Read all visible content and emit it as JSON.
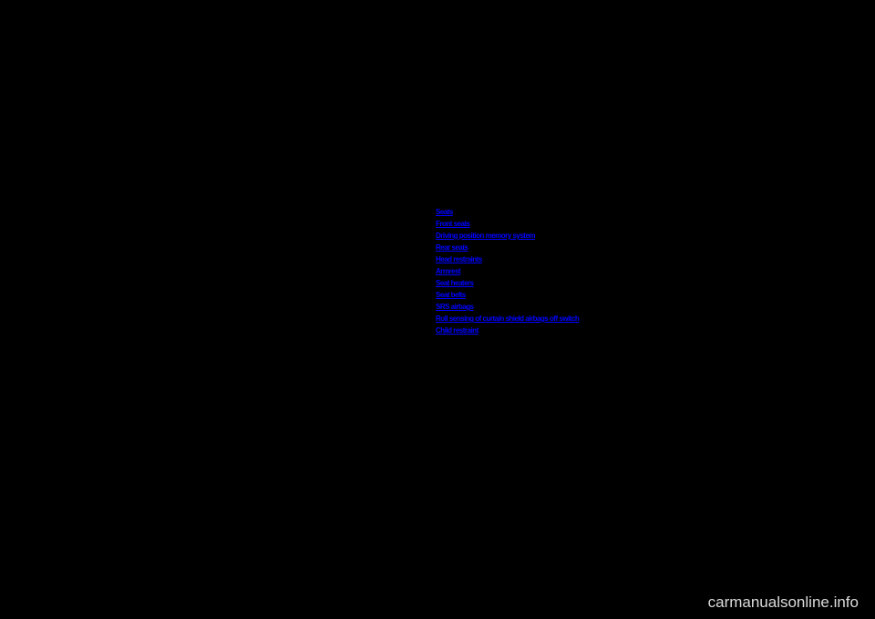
{
  "links": [
    "Seats",
    "Front seats",
    "Driving position memory system",
    "Rear seats",
    "Head restraints",
    "Armrest",
    "Seat heaters",
    "Seat belts",
    "SRS airbags",
    "Roll sensing of curtain shield airbags off switch",
    "Child restraint"
  ],
  "watermark": "carmanualsonline.info",
  "colors": {
    "page_bg": "#000000",
    "link_color": "#0000ff",
    "watermark_color": "#dcdcdc",
    "outer_bg": "#ffffff"
  }
}
